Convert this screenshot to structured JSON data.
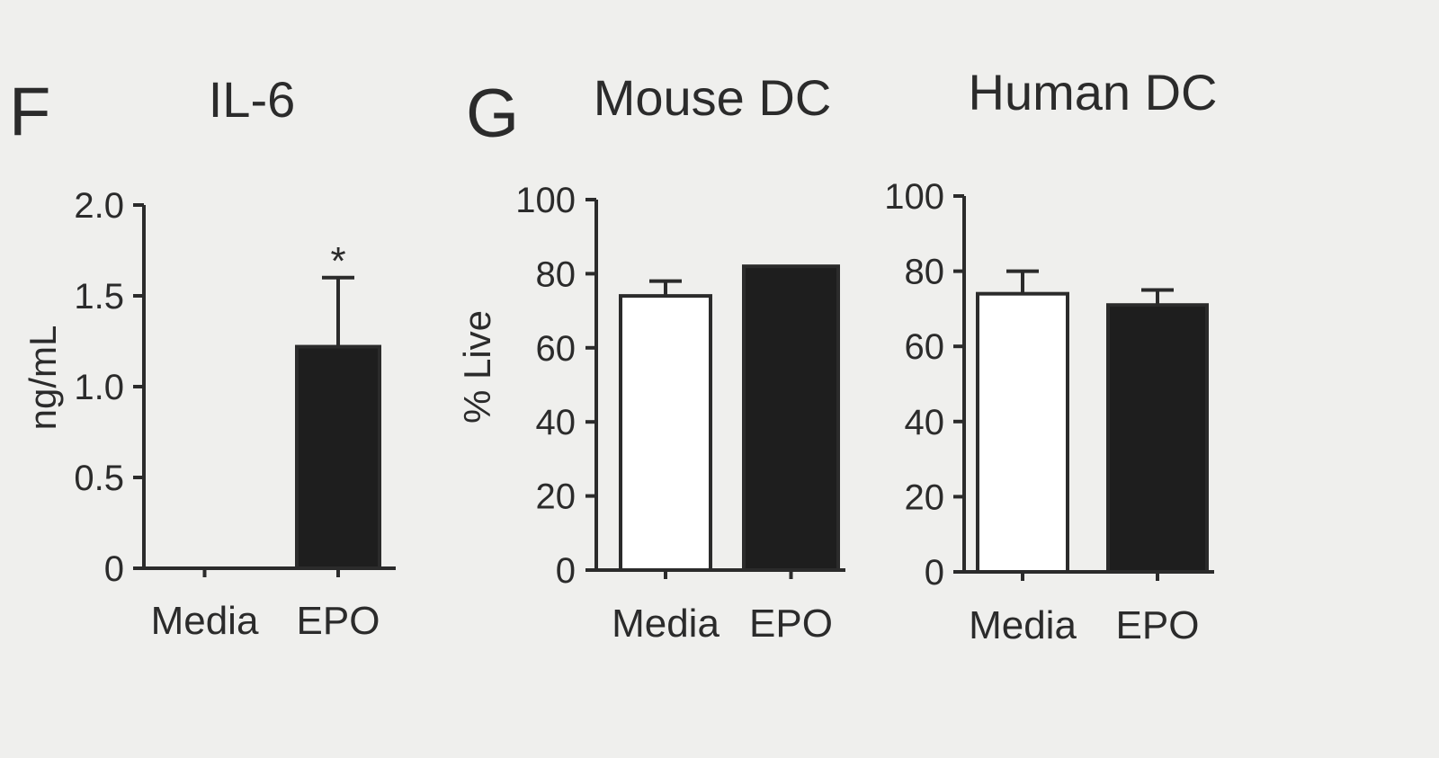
{
  "panels": [
    {
      "letter": "F"
    },
    {
      "letter": "G"
    }
  ],
  "colors": {
    "background": "#efefed",
    "ink": "#2b2b2b",
    "media_fill": "#ffffff",
    "epo_fill": "#1e1e1e"
  },
  "chart_data": [
    {
      "type": "bar",
      "panel": "F",
      "title": "IL-6",
      "ylabel": "ng/mL",
      "xlabel": "",
      "categories": [
        "Media",
        "EPO"
      ],
      "values": [
        0,
        1.22
      ],
      "errors": [
        0,
        0.38
      ],
      "annotations": [
        "",
        "*"
      ],
      "ylim": [
        0,
        2.0
      ],
      "yticks": [
        0,
        0.5,
        1.0,
        1.5,
        2.0
      ],
      "ytick_labels": [
        "0",
        "0.5",
        "1.0",
        "1.5",
        "2.0"
      ],
      "grid": false
    },
    {
      "type": "bar",
      "panel": "G",
      "title": "Mouse DC",
      "ylabel": "% Live",
      "xlabel": "",
      "categories": [
        "Media",
        "EPO"
      ],
      "values": [
        74,
        82
      ],
      "errors": [
        4,
        0
      ],
      "ylim": [
        0,
        100
      ],
      "yticks": [
        0,
        20,
        40,
        60,
        80,
        100
      ],
      "ytick_labels": [
        "0",
        "20",
        "40",
        "60",
        "80",
        "100"
      ],
      "grid": false
    },
    {
      "type": "bar",
      "panel": "G",
      "title": "Human DC",
      "ylabel": "",
      "xlabel": "",
      "categories": [
        "Media",
        "EPO"
      ],
      "values": [
        74,
        71
      ],
      "errors": [
        6,
        4
      ],
      "ylim": [
        0,
        100
      ],
      "yticks": [
        0,
        20,
        40,
        60,
        80,
        100
      ],
      "ytick_labels": [
        "0",
        "20",
        "40",
        "60",
        "80",
        "100"
      ],
      "grid": false
    }
  ]
}
